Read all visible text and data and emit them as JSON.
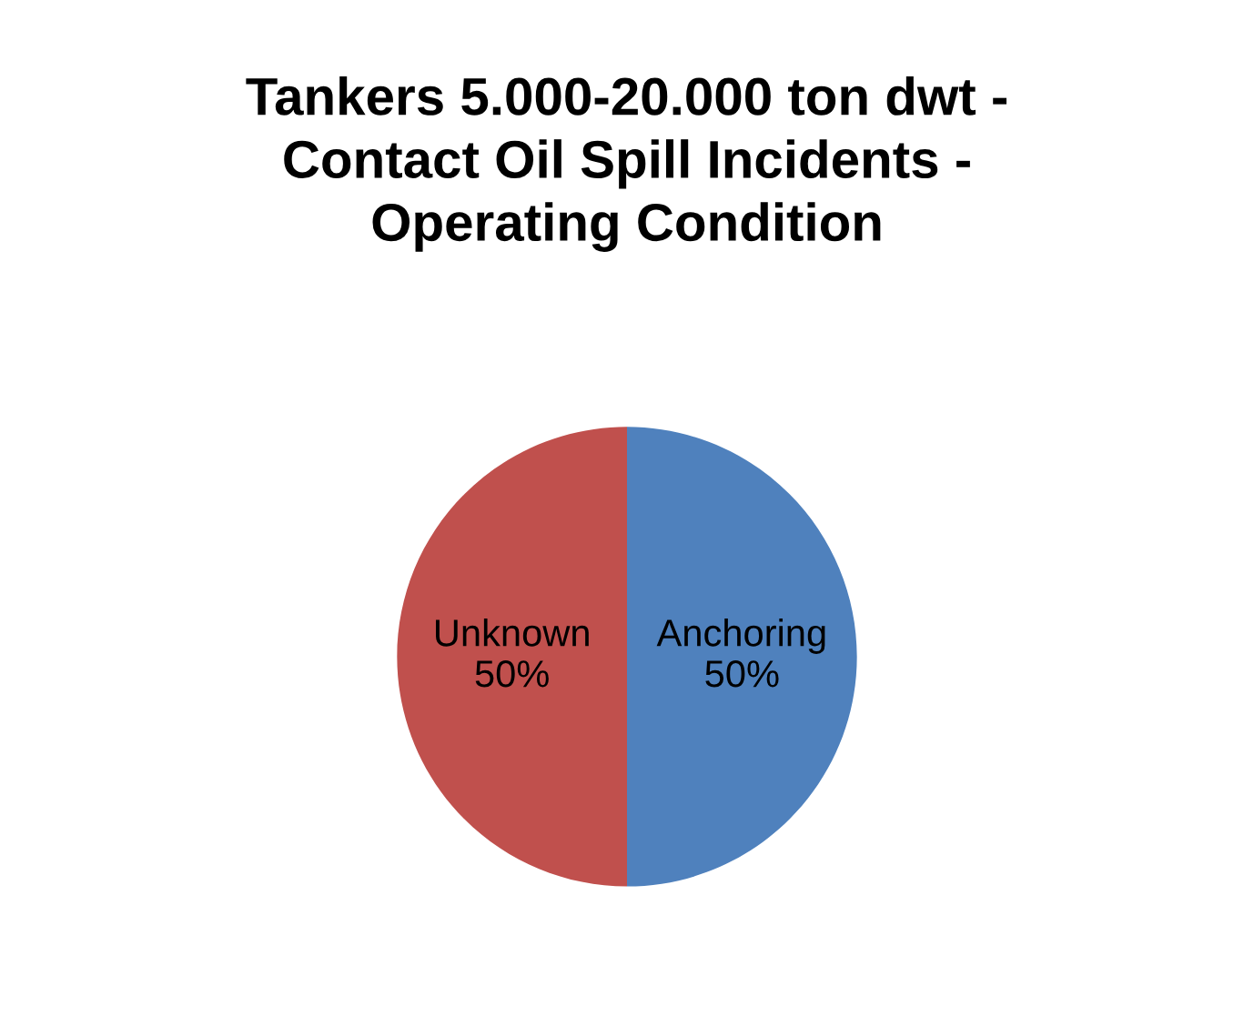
{
  "chart_data": {
    "type": "pie",
    "title": "Tankers 5.000-20.000 ton dwt -\nContact Oil Spill Incidents -\nOperating Condition",
    "categories": [
      "Anchoring",
      "Unknown"
    ],
    "values": [
      50,
      50
    ],
    "colors": [
      "#4f81bd",
      "#c0504d"
    ],
    "value_labels": [
      "50%",
      "50%"
    ],
    "legend": false
  }
}
